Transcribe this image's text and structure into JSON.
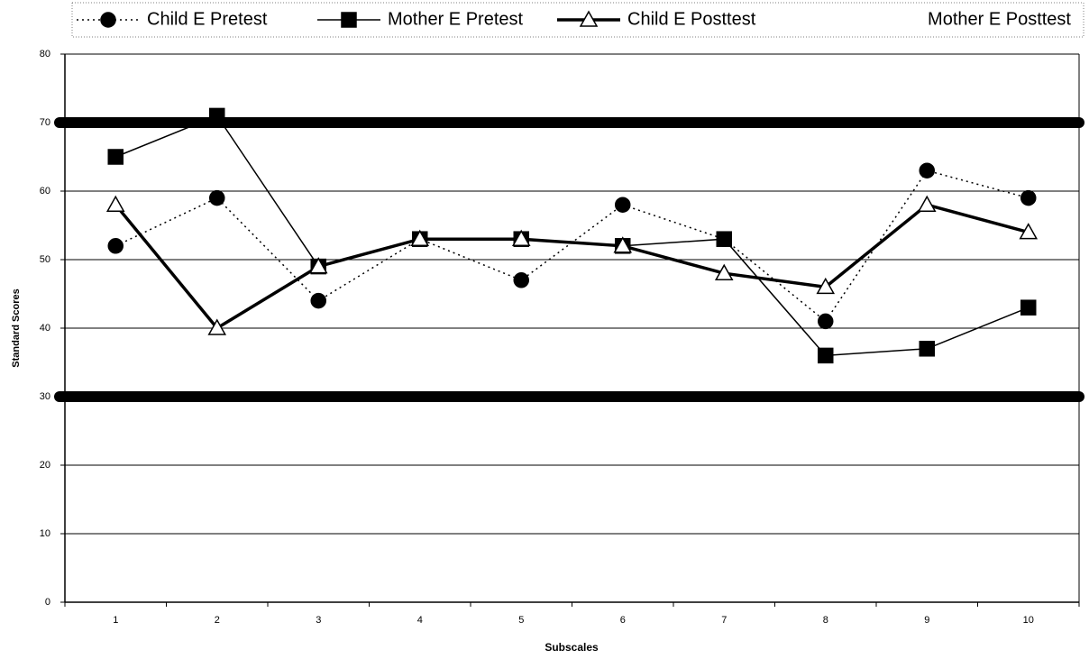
{
  "chart_data": {
    "type": "line",
    "categories": [
      "1",
      "2",
      "3",
      "4",
      "5",
      "6",
      "7",
      "8",
      "9",
      "10"
    ],
    "series": [
      {
        "name": "Child E Pretest",
        "color": "#000000",
        "marker": "circle",
        "dash": "dotted",
        "width": 1.5,
        "values": [
          52,
          59,
          44,
          53,
          47,
          58,
          53,
          41,
          63,
          59
        ]
      },
      {
        "name": "Mother E Pretest",
        "color": "#000000",
        "marker": "square",
        "dash": "solid",
        "width": 1.5,
        "values": [
          65,
          71,
          49,
          53,
          53,
          52,
          53,
          36,
          37,
          43
        ]
      },
      {
        "name": "Child E Posttest",
        "color": "#000000",
        "marker": "triangle",
        "dash": "solid",
        "width": 3.5,
        "values": [
          58,
          40,
          49,
          53,
          53,
          52,
          48,
          46,
          58,
          54
        ]
      },
      {
        "name": "Mother E Posttest",
        "color": "#ffffff",
        "marker": "none",
        "dash": "dashed",
        "width": 1.5,
        "values": [
          null,
          null,
          null,
          null,
          null,
          null,
          null,
          null,
          null,
          null
        ]
      }
    ],
    "reference_lines": [
      70,
      30
    ],
    "ylim": [
      0,
      80
    ],
    "yticks": [
      0,
      10,
      20,
      30,
      40,
      50,
      60,
      70,
      80
    ],
    "grid": true,
    "y_label": "Standard Scores",
    "x_label": "Subscales",
    "legend": "top"
  }
}
